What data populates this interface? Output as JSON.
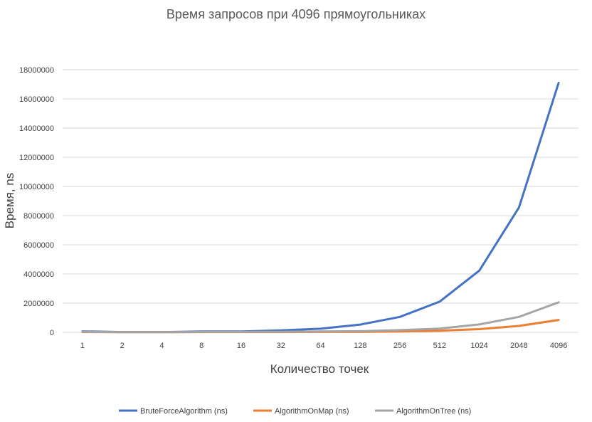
{
  "chart_data": {
    "type": "line",
    "title": "Время запросов при 4096 прямоугольниках",
    "xlabel": "Количество точек",
    "ylabel": "Время, ns",
    "ylim": [
      0,
      18000000
    ],
    "yticks": [
      "0",
      "2000000",
      "4000000",
      "6000000",
      "8000000",
      "10000000",
      "12000000",
      "14000000",
      "16000000",
      "18000000"
    ],
    "categories": [
      "1",
      "2",
      "4",
      "8",
      "16",
      "32",
      "64",
      "128",
      "256",
      "512",
      "1024",
      "2048",
      "4096"
    ],
    "grid": true,
    "legend_position": "bottom",
    "series": [
      {
        "name": "BruteForceAlgorithm (ns)",
        "color": "#4472c4",
        "values": [
          70000,
          20000,
          20000,
          60000,
          60000,
          130000,
          250000,
          530000,
          1060000,
          2100000,
          4230000,
          8550000,
          17100000
        ]
      },
      {
        "name": "AlgorithmOnMap (ns)",
        "color": "#ed7d31",
        "values": [
          20000,
          10000,
          10000,
          20000,
          20000,
          20000,
          30000,
          30000,
          60000,
          110000,
          220000,
          440000,
          850000
        ]
      },
      {
        "name": "AlgorithmOnTree (ns)",
        "color": "#a5a5a5",
        "values": [
          40000,
          10000,
          10000,
          30000,
          30000,
          40000,
          60000,
          80000,
          150000,
          260000,
          540000,
          1060000,
          2060000
        ]
      }
    ]
  }
}
